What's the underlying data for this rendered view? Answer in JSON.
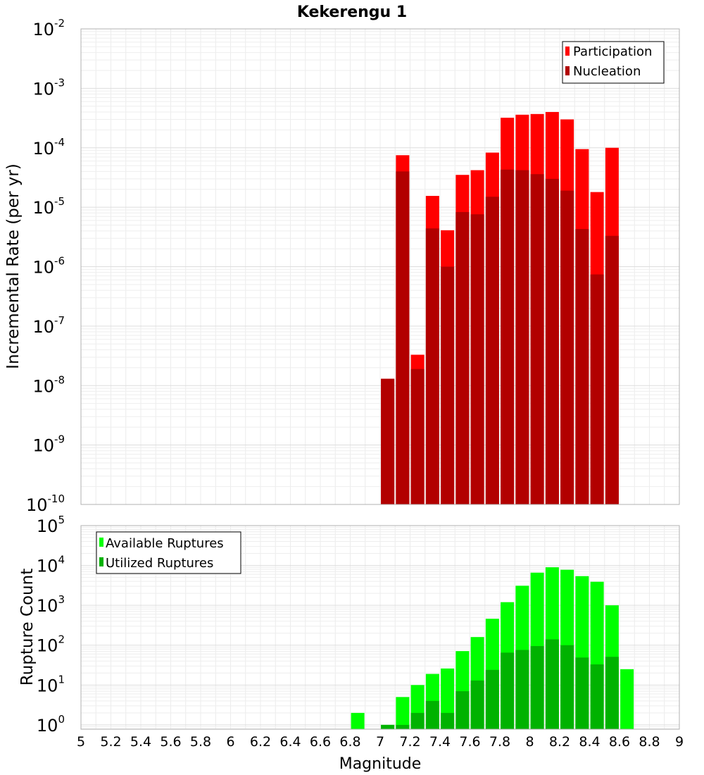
{
  "chart_data": [
    {
      "type": "bar",
      "title": "Kekerengu 1",
      "xlabel": "",
      "ylabel": "Incremental Rate (per yr)",
      "yscale": "log",
      "ylim": [
        1e-10,
        0.01
      ],
      "xlim": [
        5,
        9
      ],
      "ytick_exponents": [
        -10,
        -9,
        -8,
        -7,
        -6,
        -5,
        -4,
        -3,
        -2
      ],
      "grid": true,
      "legend_position": "top-right",
      "x": [
        7.05,
        7.15,
        7.25,
        7.35,
        7.45,
        7.55,
        7.65,
        7.75,
        7.85,
        7.95,
        8.05,
        8.15,
        8.25,
        8.35,
        8.45,
        8.55
      ],
      "series": [
        {
          "name": "Participation",
          "color": "#ff0000",
          "values": [
            1.3e-08,
            7.5e-05,
            3.3e-08,
            1.55e-05,
            4.1e-06,
            3.5e-05,
            4.2e-05,
            8.3e-05,
            0.00032,
            0.00036,
            0.00037,
            0.0004,
            0.0003,
            9.5e-05,
            1.8e-05,
            0.0001
          ]
        },
        {
          "name": "Nucleation",
          "color": "#b20000",
          "values": [
            1.3e-08,
            4e-05,
            1.9e-08,
            4.4e-06,
            1e-06,
            8.3e-06,
            7.6e-06,
            1.5e-05,
            4.3e-05,
            4.2e-05,
            3.6e-05,
            3e-05,
            1.9e-05,
            4.3e-06,
            7.4e-07,
            3.3e-06
          ]
        }
      ]
    },
    {
      "type": "bar",
      "title": "",
      "xlabel": "Magnitude",
      "ylabel": "Rupture Count",
      "yscale": "log",
      "ylim": [
        0.78,
        100000.0
      ],
      "xlim": [
        5,
        9
      ],
      "ytick_exponents": [
        0,
        1,
        2,
        3,
        4,
        5
      ],
      "xticks": [
        "5",
        "5.2",
        "5.4",
        "5.6",
        "5.8",
        "6",
        "6.2",
        "6.4",
        "6.6",
        "6.8",
        "7",
        "7.2",
        "7.4",
        "7.6",
        "7.8",
        "8",
        "8.2",
        "8.4",
        "8.6",
        "8.8",
        "9"
      ],
      "grid": true,
      "legend_position": "top-left",
      "x": [
        6.85,
        7.05,
        7.15,
        7.25,
        7.35,
        7.45,
        7.55,
        7.65,
        7.75,
        7.85,
        7.95,
        8.05,
        8.15,
        8.25,
        8.35,
        8.45,
        8.55,
        8.65
      ],
      "series": [
        {
          "name": "Available Ruptures",
          "color": "#00ff00",
          "values": [
            2,
            1,
            5,
            10,
            19,
            26,
            71,
            160,
            460,
            1200,
            3100,
            6600,
            9000,
            7800,
            5400,
            3900,
            1000,
            25
          ]
        },
        {
          "name": "Utilized Ruptures",
          "color": "#00b200",
          "values": [
            null,
            1,
            1,
            2,
            4,
            2,
            7,
            13,
            24,
            65,
            76,
            95,
            140,
            100,
            49,
            33,
            51,
            null
          ]
        }
      ]
    }
  ]
}
